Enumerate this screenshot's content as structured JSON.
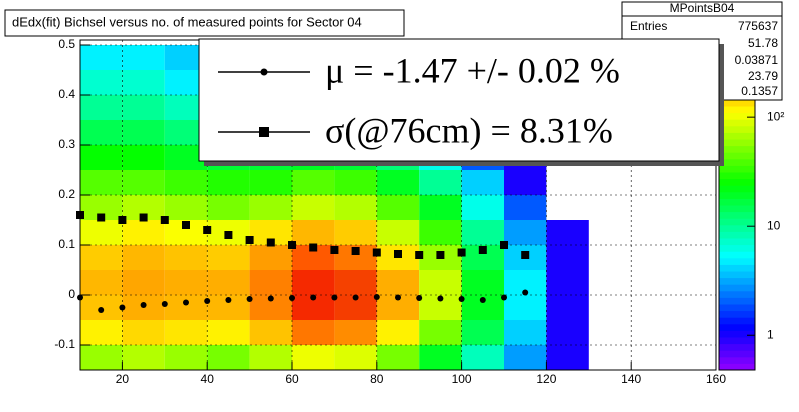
{
  "chart_data": {
    "type": "heatmap",
    "title": "dEdx(fit) Bichsel versus no. of measured points for Sector 04",
    "x_bins": [
      10,
      20,
      30,
      40,
      50,
      60,
      70,
      80,
      90,
      100,
      110,
      120,
      130
    ],
    "y_bins": [
      -0.15,
      -0.1,
      -0.05,
      0,
      0.05,
      0.1,
      0.15,
      0.2,
      0.25,
      0.3,
      0.35,
      0.4,
      0.45,
      0.5
    ],
    "z": [
      [
        60,
        70,
        60,
        50,
        70,
        100,
        90,
        50,
        20,
        8,
        3,
        1
      ],
      [
        120,
        140,
        130,
        120,
        160,
        250,
        220,
        120,
        50,
        15,
        4,
        1
      ],
      [
        160,
        180,
        170,
        170,
        230,
        400,
        350,
        180,
        80,
        20,
        5,
        1
      ],
      [
        170,
        190,
        180,
        180,
        240,
        400,
        340,
        180,
        80,
        20,
        5,
        1
      ],
      [
        150,
        170,
        160,
        150,
        200,
        300,
        250,
        130,
        60,
        15,
        4,
        1
      ],
      [
        100,
        120,
        110,
        100,
        130,
        170,
        150,
        80,
        35,
        10,
        3,
        1
      ],
      [
        60,
        70,
        60,
        50,
        60,
        80,
        70,
        40,
        20,
        6,
        2,
        null
      ],
      [
        40,
        40,
        35,
        30,
        30,
        40,
        35,
        20,
        10,
        4,
        1,
        null
      ],
      [
        25,
        25,
        20,
        18,
        18,
        20,
        18,
        12,
        6,
        2,
        1,
        null
      ],
      [
        15,
        15,
        12,
        10,
        10,
        12,
        10,
        7,
        4,
        2,
        1,
        null
      ],
      [
        10,
        10,
        8,
        7,
        7,
        7,
        6,
        4,
        3,
        1,
        null,
        null
      ],
      [
        7,
        7,
        5,
        5,
        5,
        5,
        4,
        3,
        2,
        1,
        null,
        null
      ],
      [
        5,
        5,
        4,
        4,
        4,
        3,
        3,
        2,
        1,
        null,
        null,
        null
      ]
    ],
    "zlim": [
      0.48,
      510
    ],
    "zticks": [
      1,
      10,
      {
        "value": 100,
        "label": "10²"
      }
    ],
    "log_z": true,
    "xlim": [
      10,
      160
    ],
    "xticks": [
      20,
      40,
      60,
      80,
      100,
      120,
      140,
      160
    ],
    "ylim": [
      -0.15,
      0.51
    ],
    "yticks": [
      -0.1,
      0,
      0.1,
      0.2,
      0.3,
      0.4,
      0.5
    ],
    "grid": true,
    "x": [
      10,
      15,
      20,
      25,
      30,
      35,
      40,
      45,
      50,
      55,
      60,
      65,
      70,
      75,
      80,
      85,
      90,
      95,
      100,
      105,
      110,
      115
    ],
    "series": [
      {
        "name": "μ  = -1.47 +/-  0.02 %",
        "color": "#000000",
        "marker": "circle",
        "values": [
          -0.005,
          -0.03,
          -0.025,
          -0.02,
          -0.018,
          -0.015,
          -0.012,
          -0.01,
          -0.008,
          -0.007,
          -0.006,
          -0.005,
          -0.005,
          -0.005,
          -0.004,
          -0.005,
          -0.006,
          -0.007,
          -0.008,
          -0.01,
          -0.005,
          0.005
        ]
      },
      {
        "name": "σ(@76cm) =  8.31%",
        "color": "#000000",
        "marker": "square",
        "values": [
          0.16,
          0.155,
          0.15,
          0.155,
          0.15,
          0.14,
          0.13,
          0.12,
          0.11,
          0.105,
          0.1,
          0.095,
          0.09,
          0.088,
          0.085,
          0.082,
          0.08,
          0.08,
          0.085,
          0.09,
          0.1,
          0.08
        ]
      }
    ],
    "stats": {
      "title": "MPointsB04",
      "entries_label": "Entries",
      "values": [
        775637,
        51.78,
        0.03871,
        23.79,
        0.1357
      ]
    }
  }
}
